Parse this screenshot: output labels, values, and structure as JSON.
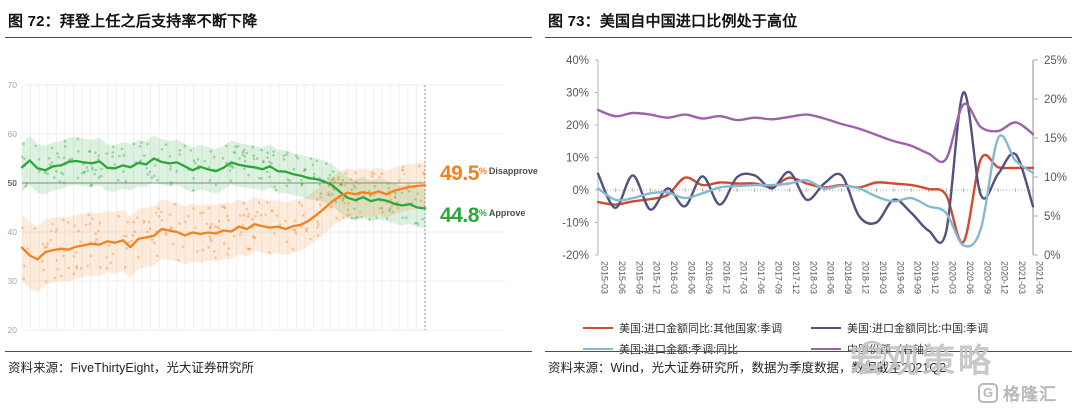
{
  "figure72": {
    "title": "图 72：拜登上任之后支持率不断下降",
    "source": "资料来源：FiveThirtyEight，光大证券研究所",
    "end_labels": {
      "disapprove": {
        "value": "49.5",
        "unit": "%",
        "name": "Disapprove",
        "color": "#f4811f"
      },
      "approve": {
        "value": "44.8",
        "unit": "%",
        "name": "Approve",
        "color": "#28a93a"
      }
    }
  },
  "figure73": {
    "title": "图 73：美国自中国进口比例处于高位",
    "source": "资料来源：Wind，光大证券研究所，数据为季度数据，数据截至2021Q2"
  },
  "watermark": {
    "text": "宏观策略",
    "logo_letter": "G",
    "logo_text": "格隆汇"
  },
  "chart_data": [
    {
      "type": "line",
      "title": "图 72：拜登上任之后支持率不断下降",
      "subject": "Biden approval vs disapproval since inauguration (FiveThirtyEight style)",
      "ylim": [
        20,
        70
      ],
      "y_ticks": [
        70,
        60,
        50,
        40,
        30,
        20
      ],
      "reference_line_y": 50,
      "grid": "light vertical weekly gridlines, horizontal every 10, darker line at 50, dashed vertical at latest date",
      "series": [
        {
          "name": "Approve",
          "color": "#28a93a",
          "end_value": 44.8,
          "values": [
            53.2,
            54.6,
            53.0,
            52.6,
            53.4,
            53.6,
            54.3,
            54.5,
            54.2,
            54.0,
            54.4,
            53.1,
            53.0,
            53.6,
            53.2,
            54.1,
            53.8,
            55.0,
            54.3,
            54.0,
            54.2,
            53.4,
            52.6,
            53.3,
            52.8,
            52.4,
            53.1,
            54.2,
            53.7,
            53.4,
            53.2,
            52.8,
            53.4,
            52.4,
            52.3,
            51.8,
            51.5,
            51.0,
            50.8,
            50.3,
            49.6,
            48.2,
            47.0,
            46.5,
            47.1,
            46.3,
            46.7,
            46.4,
            45.8,
            45.4,
            45.7,
            45.0,
            44.8
          ],
          "band_halfwidth_start": 5.0,
          "band_halfwidth_end": 4.0
        },
        {
          "name": "Disapprove",
          "color": "#f4811f",
          "end_value": 49.5,
          "values": [
            36.8,
            35.2,
            34.4,
            35.9,
            36.3,
            36.6,
            36.4,
            37.0,
            37.3,
            37.6,
            37.4,
            38.1,
            37.8,
            38.3,
            36.9,
            38.6,
            38.9,
            39.2,
            40.6,
            40.3,
            40.0,
            39.3,
            39.9,
            39.6,
            39.9,
            39.7,
            40.3,
            40.1,
            41.1,
            40.6,
            41.6,
            41.2,
            40.9,
            41.1,
            40.6,
            41.2,
            41.5,
            42.3,
            43.5,
            44.8,
            46.2,
            47.3,
            48.0,
            47.7,
            48.1,
            47.8,
            48.3,
            47.7,
            48.4,
            48.8,
            49.2,
            49.4,
            49.5
          ],
          "band_halfwidth_start": 6.8,
          "band_halfwidth_end": 4.6
        }
      ],
      "scatter": {
        "points_per_series": 240,
        "seed": 7,
        "note": "individual poll dots inside shaded band"
      }
    },
    {
      "type": "line",
      "title": "图 73：美国自中国进口比例处于高位",
      "x_labels": [
        "2015-03",
        "2015-06",
        "2015-09",
        "2015-12",
        "2016-03",
        "2016-06",
        "2016-09",
        "2016-12",
        "2017-03",
        "2017-06",
        "2017-09",
        "2017-12",
        "2018-03",
        "2018-06",
        "2018-09",
        "2018-12",
        "2019-03",
        "2019-06",
        "2019-09",
        "2019-12",
        "2020-03",
        "2020-06",
        "2020-09",
        "2020-12",
        "2021-03",
        "2021-06"
      ],
      "left_axis": {
        "range": [
          -20,
          40
        ],
        "ticks": [
          "40%",
          "30%",
          "20%",
          "10%",
          "0%",
          "-10%",
          "-20%"
        ]
      },
      "right_axis": {
        "range": [
          0,
          25
        ],
        "ticks": [
          "25%",
          "20%",
          "15%",
          "10%",
          "5%",
          "0%"
        ]
      },
      "legend_position": "bottom",
      "series": [
        {
          "name": "美国:进口金额同比:其他国家:季调",
          "color": "#d1492e",
          "axis": "left",
          "values": [
            -3.7,
            -4.5,
            -3.5,
            -2.8,
            -1.5,
            3.8,
            1.5,
            2.3,
            2.0,
            2.0,
            1.0,
            3.8,
            2.0,
            0.8,
            1.5,
            0.8,
            2.3,
            2.0,
            1.5,
            0.3,
            -1.5,
            -16.0,
            9.5,
            7.0,
            6.8,
            6.8
          ]
        },
        {
          "name": "美国:进口金额同比:中国:季调",
          "color": "#52527e",
          "axis": "left",
          "values": [
            5.0,
            -5.5,
            4.5,
            -6.0,
            0.5,
            -5.0,
            4.2,
            -4.5,
            4.0,
            4.5,
            0.5,
            5.5,
            -3.0,
            2.0,
            4.5,
            -8.0,
            -10.0,
            -3.0,
            -7.0,
            -12.5,
            -13.0,
            30.0,
            -1.5,
            5.0,
            11.0,
            -5.0
          ]
        },
        {
          "name": "美国:进口金额:季调:同比",
          "color": "#85b8d2",
          "axis": "left",
          "values": [
            0.5,
            -3.0,
            -2.5,
            -1.0,
            -0.8,
            -2.5,
            -1.0,
            0.8,
            1.2,
            1.5,
            1.5,
            2.0,
            3.0,
            0.5,
            1.3,
            0.5,
            -2.0,
            -3.5,
            -2.5,
            -5.0,
            -7.0,
            -17.0,
            -12.0,
            16.0,
            9.0,
            5.3
          ]
        },
        {
          "name": "中国份额（右轴）",
          "color": "#9c64a6",
          "axis": "right",
          "values": [
            18.6,
            17.8,
            18.2,
            18.0,
            17.6,
            18.0,
            17.5,
            17.8,
            17.3,
            17.6,
            17.4,
            17.7,
            18.0,
            17.5,
            16.8,
            16.2,
            15.4,
            14.6,
            14.0,
            13.0,
            12.3,
            19.3,
            16.4,
            15.9,
            17.0,
            15.5
          ]
        }
      ]
    }
  ]
}
